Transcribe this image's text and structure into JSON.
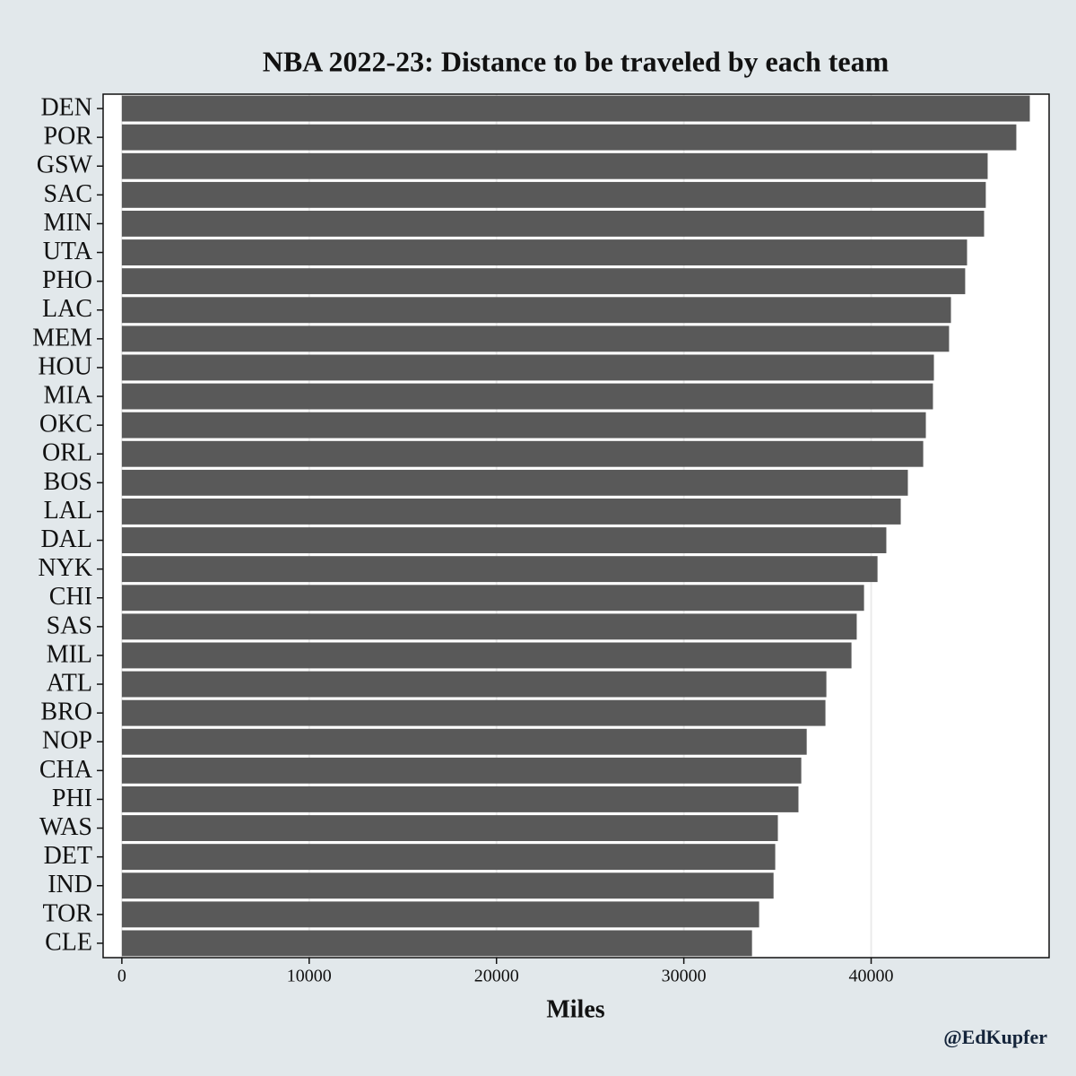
{
  "chart_data": {
    "type": "bar",
    "orientation": "horizontal",
    "title": "NBA 2022-23: Distance to be traveled by each team",
    "x_label": "Miles",
    "caption": "@EdKupfer",
    "categories": [
      "DEN",
      "POR",
      "GSW",
      "SAC",
      "MIN",
      "UTA",
      "PHO",
      "LAC",
      "MEM",
      "HOU",
      "MIA",
      "OKC",
      "ORL",
      "BOS",
      "LAL",
      "DAL",
      "NYK",
      "CHI",
      "SAS",
      "MIL",
      "ATL",
      "BRO",
      "NOP",
      "CHA",
      "PHI",
      "WAS",
      "DET",
      "IND",
      "TOR",
      "CLE"
    ],
    "values": [
      48470,
      47750,
      46220,
      46120,
      46030,
      45120,
      45020,
      44260,
      44160,
      43350,
      43300,
      42920,
      42780,
      41960,
      41580,
      40810,
      40340,
      39620,
      39230,
      38950,
      37610,
      37560,
      36560,
      36270,
      36120,
      35020,
      34880,
      34790,
      34020,
      33640
    ],
    "color": "#595959",
    "xlim": [
      -1000,
      49500
    ],
    "xticks": [
      0,
      10000,
      20000,
      30000,
      40000
    ],
    "grid": true
  }
}
